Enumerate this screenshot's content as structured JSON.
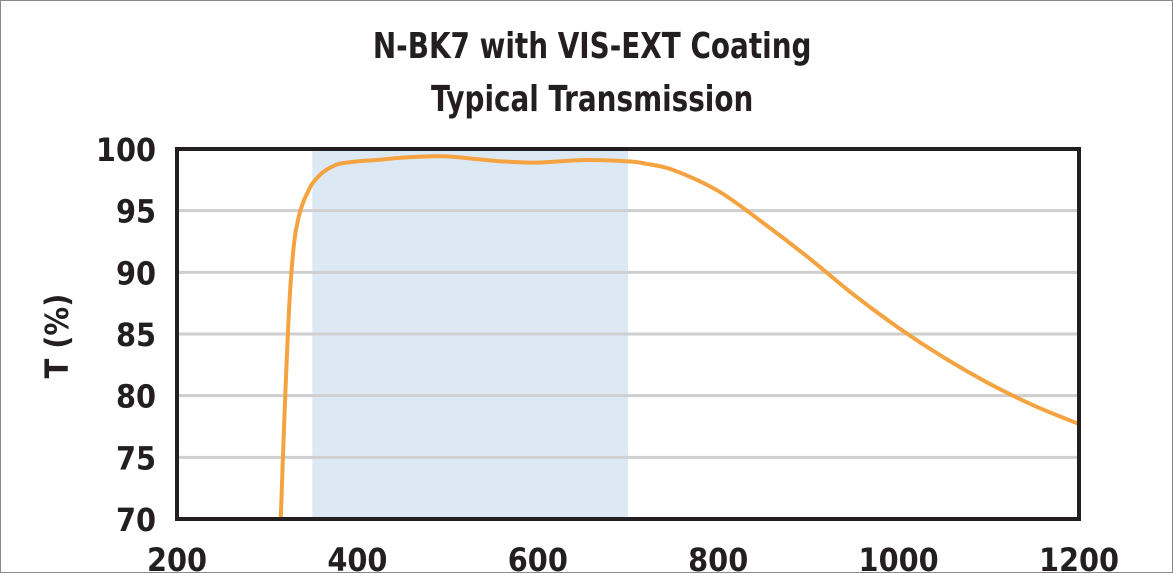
{
  "chart_data": {
    "type": "line",
    "title": "N-BK7 with VIS-EXT Coating",
    "subtitle": "Typical Transmission",
    "xlabel": "",
    "ylabel": "T (%)",
    "xlim": [
      200,
      1200
    ],
    "ylim": [
      70,
      100
    ],
    "x_ticks": [
      "200",
      "400",
      "600",
      "800",
      "1000",
      "1200"
    ],
    "y_ticks": [
      "70",
      "75",
      "80",
      "85",
      "90",
      "95",
      "100"
    ],
    "grid": "horizontal",
    "highlight_band": {
      "x_start": 350,
      "x_end": 700
    },
    "series": [
      {
        "x": [
          315,
          320,
          325,
          330,
          335,
          340,
          345,
          350,
          360,
          370,
          380,
          400,
          420,
          450,
          480,
          500,
          530,
          560,
          600,
          650,
          700,
          720,
          750,
          800,
          850,
          900,
          950,
          1000,
          1050,
          1100,
          1150,
          1200
        ],
        "y": [
          70,
          80,
          88,
          92.5,
          94.5,
          95.7,
          96.5,
          97.2,
          98.0,
          98.5,
          98.8,
          99.0,
          99.1,
          99.3,
          99.4,
          99.4,
          99.2,
          99.0,
          98.9,
          99.1,
          99.0,
          98.8,
          98.3,
          96.6,
          94.0,
          91.2,
          88.2,
          85.5,
          83.1,
          81.0,
          79.2,
          77.7
        ]
      }
    ],
    "colors": {
      "line": "#f4a340",
      "band": "#dce9f5",
      "grid": "#cfcfcf",
      "axis": "#231f20"
    }
  }
}
